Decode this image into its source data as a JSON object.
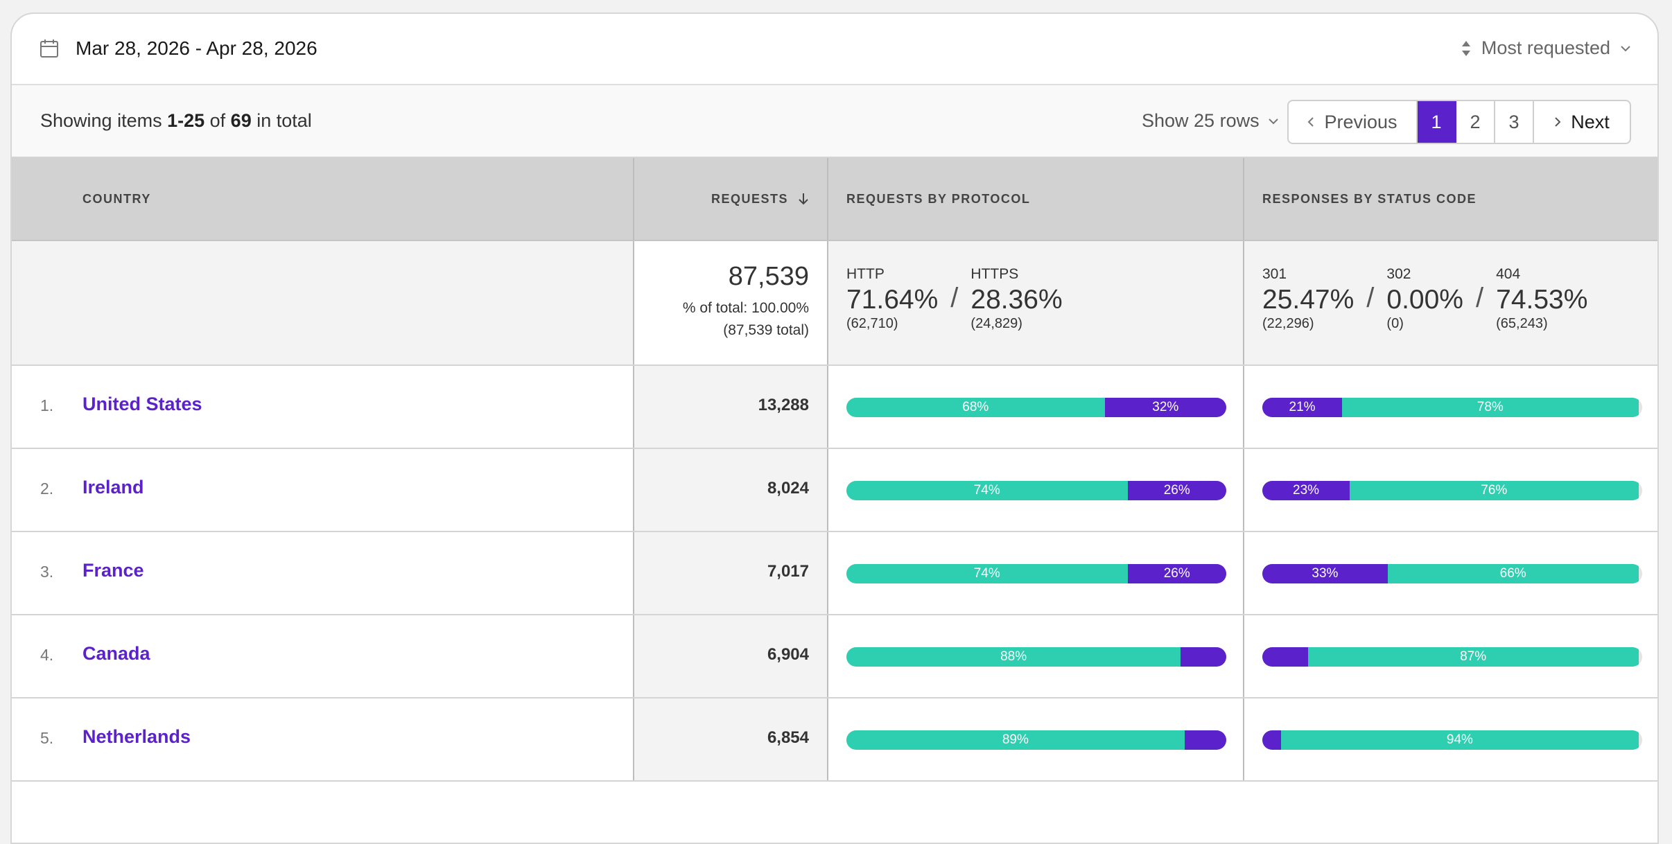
{
  "header": {
    "date_range": "Mar 28, 2026 - Apr 28, 2026",
    "sort_label": "Most requested"
  },
  "toolbar": {
    "showing_prefix": "Showing items ",
    "showing_range": "1-25",
    "showing_of": " of ",
    "showing_total": "69",
    "showing_suffix": " in total",
    "rows_label": "Show 25 rows",
    "prev_label": "Previous",
    "next_label": "Next",
    "pages": [
      "1",
      "2",
      "3"
    ],
    "active_page": "1"
  },
  "columns": {
    "country": "COUNTRY",
    "requests": "REQUESTS",
    "protocol": "REQUESTS BY PROTOCOL",
    "status": "RESPONSES BY STATUS CODE"
  },
  "summary": {
    "requests_total": "87,539",
    "pct_of_total": "% of total: 100.00%",
    "total_note": "(87,539 total)",
    "protocol": [
      {
        "label": "HTTP",
        "pct": "71.64%",
        "count": "(62,710)"
      },
      {
        "label": "HTTPS",
        "pct": "28.36%",
        "count": "(24,829)"
      }
    ],
    "status": [
      {
        "label": "301",
        "pct": "25.47%",
        "count": "(22,296)"
      },
      {
        "label": "302",
        "pct": "0.00%",
        "count": "(0)"
      },
      {
        "label": "404",
        "pct": "74.53%",
        "count": "(65,243)"
      }
    ]
  },
  "rows": [
    {
      "rank": "1.",
      "country": "United States",
      "requests": "13,288",
      "protocol": [
        {
          "value": 68,
          "label": "68%",
          "color": "teal"
        },
        {
          "value": 32,
          "label": "32%",
          "color": "purple"
        }
      ],
      "status": [
        {
          "value": 21,
          "label": "21%",
          "color": "purple"
        },
        {
          "value": 78,
          "label": "78%",
          "color": "teal"
        }
      ]
    },
    {
      "rank": "2.",
      "country": "Ireland",
      "requests": "8,024",
      "protocol": [
        {
          "value": 74,
          "label": "74%",
          "color": "teal"
        },
        {
          "value": 26,
          "label": "26%",
          "color": "purple"
        }
      ],
      "status": [
        {
          "value": 23,
          "label": "23%",
          "color": "purple"
        },
        {
          "value": 76,
          "label": "76%",
          "color": "teal"
        }
      ]
    },
    {
      "rank": "3.",
      "country": "France",
      "requests": "7,017",
      "protocol": [
        {
          "value": 74,
          "label": "74%",
          "color": "teal"
        },
        {
          "value": 26,
          "label": "26%",
          "color": "purple"
        }
      ],
      "status": [
        {
          "value": 33,
          "label": "33%",
          "color": "purple"
        },
        {
          "value": 66,
          "label": "66%",
          "color": "teal"
        }
      ]
    },
    {
      "rank": "4.",
      "country": "Canada",
      "requests": "6,904",
      "protocol": [
        {
          "value": 88,
          "label": "88%",
          "color": "teal"
        },
        {
          "value": 12,
          "label": "",
          "color": "purple"
        }
      ],
      "status": [
        {
          "value": 12,
          "label": "",
          "color": "purple"
        },
        {
          "value": 87,
          "label": "87%",
          "color": "teal"
        }
      ]
    },
    {
      "rank": "5.",
      "country": "Netherlands",
      "requests": "6,854",
      "protocol": [
        {
          "value": 89,
          "label": "89%",
          "color": "teal"
        },
        {
          "value": 11,
          "label": "",
          "color": "purple"
        }
      ],
      "status": [
        {
          "value": 5,
          "label": "",
          "color": "purple"
        },
        {
          "value": 94,
          "label": "94%",
          "color": "teal"
        }
      ]
    }
  ],
  "colors": {
    "accent": "#5b22cc",
    "teal": "#2ecfb1"
  }
}
